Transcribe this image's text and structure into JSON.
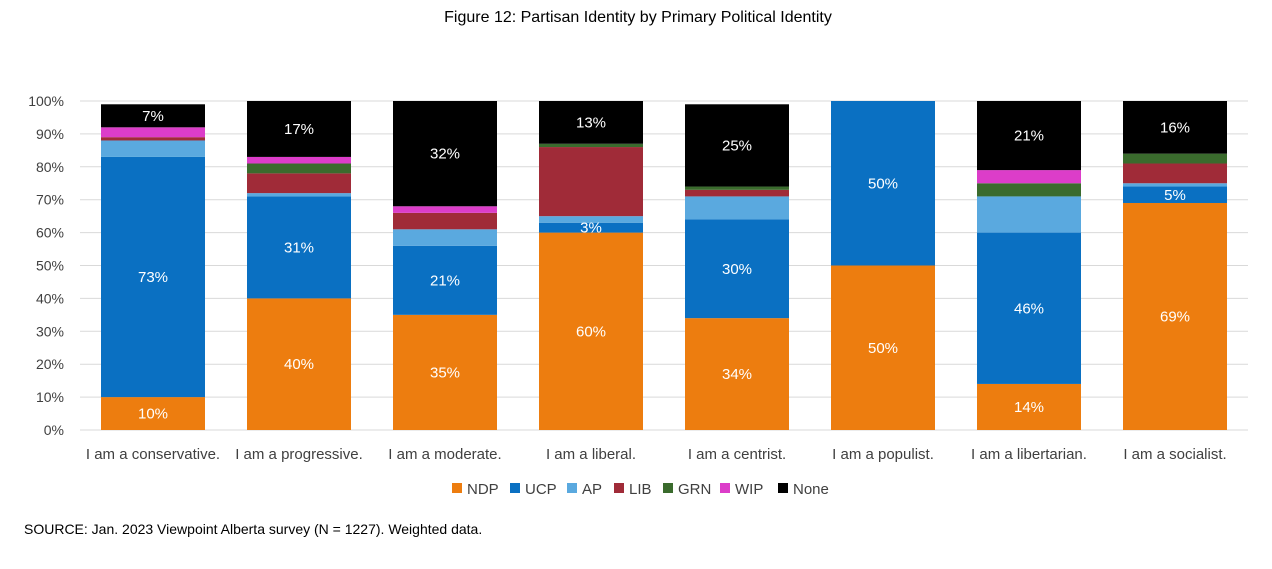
{
  "chart_data": {
    "type": "bar",
    "stacked": true,
    "percent": true,
    "title": "Figure 12: Partisan Identity by Primary Political Identity",
    "categories": [
      "I am a conservative.",
      "I am a progressive.",
      "I am a moderate.",
      "I am a liberal.",
      "I am a centrist.",
      "I am a populist.",
      "I am a libertarian.",
      "I am a socialist."
    ],
    "ylim": [
      0,
      100
    ],
    "yticks": [
      "0%",
      "10%",
      "20%",
      "30%",
      "40%",
      "50%",
      "60%",
      "70%",
      "80%",
      "90%",
      "100%"
    ],
    "grid": true,
    "legend_position": "bottom",
    "series": [
      {
        "name": "NDP",
        "color": "#ED7D0F",
        "values": [
          10,
          40,
          35,
          60,
          34,
          50,
          14,
          69
        ],
        "labels": [
          "10%",
          "40%",
          "35%",
          "60%",
          "34%",
          "50%",
          "14%",
          "69%"
        ]
      },
      {
        "name": "UCP",
        "color": "#0A70C2",
        "values": [
          73,
          31,
          21,
          3,
          30,
          50,
          46,
          5
        ],
        "labels": [
          "73%",
          "31%",
          "21%",
          "3%",
          "30%",
          "50%",
          "46%",
          "5%"
        ]
      },
      {
        "name": "AP",
        "color": "#5AA9DF",
        "values": [
          5,
          1,
          5,
          2,
          7,
          0,
          11,
          1
        ],
        "labels": []
      },
      {
        "name": "LIB",
        "color": "#A02B38",
        "values": [
          1,
          6,
          5,
          21,
          2,
          0,
          0,
          6
        ],
        "labels": []
      },
      {
        "name": "GRN",
        "color": "#3A6B2D",
        "values": [
          0,
          3,
          0,
          1,
          1,
          0,
          4,
          3
        ],
        "labels": []
      },
      {
        "name": "WIP",
        "color": "#DC3DC9",
        "values": [
          3,
          2,
          2,
          0,
          0,
          0,
          4,
          0
        ],
        "labels": []
      },
      {
        "name": "None",
        "color": "#000000",
        "values": [
          7,
          17,
          32,
          13,
          25,
          0,
          21,
          16
        ],
        "labels": [
          "7%",
          "17%",
          "32%",
          "13%",
          "25%",
          "",
          "21%",
          "16%"
        ]
      }
    ]
  },
  "source": "SOURCE: Jan. 2023 Viewpoint Alberta survey (N = 1227). Weighted data."
}
